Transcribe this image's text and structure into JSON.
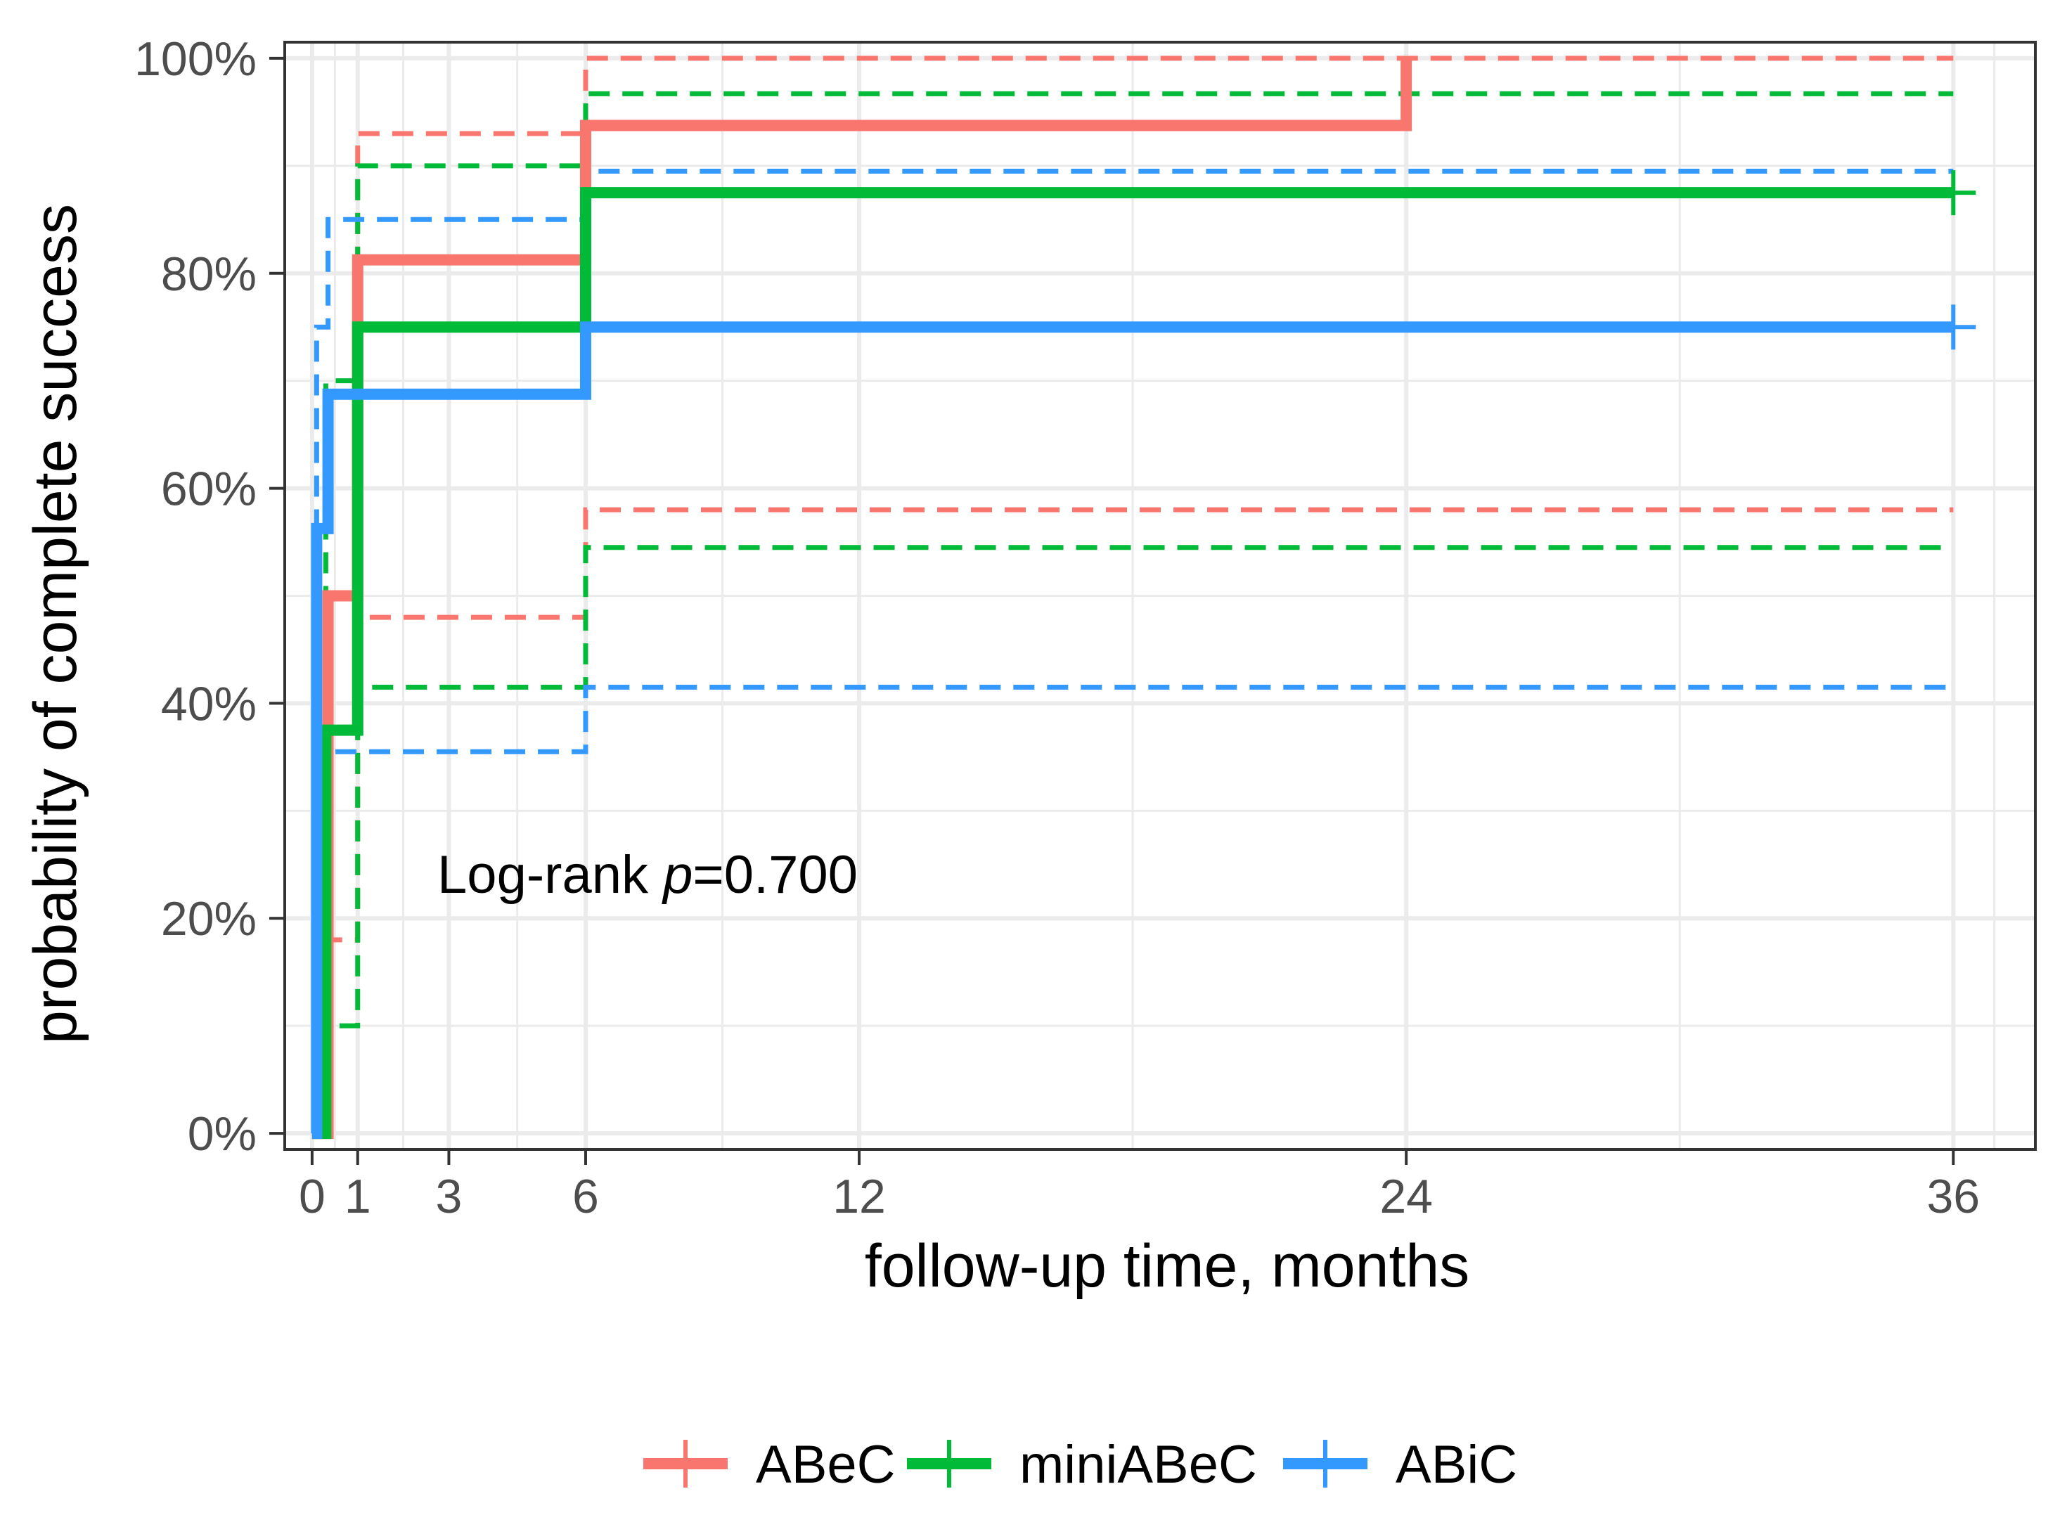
{
  "chart_data": {
    "type": "line",
    "xlabel": "follow-up time, months",
    "ylabel": "probability of complete success",
    "xlim": [
      -0.6,
      37.8
    ],
    "ylim": [
      -0.015,
      1.015
    ],
    "xticks": [
      0,
      1,
      3,
      6,
      12,
      24,
      36
    ],
    "xtick_labels": [
      "0",
      "1",
      "3",
      "6",
      "12",
      "24",
      "36"
    ],
    "yticks": [
      0,
      0.2,
      0.4,
      0.6,
      0.8,
      1.0
    ],
    "ytick_labels": [
      "0%",
      "20%",
      "40%",
      "60%",
      "80%",
      "100%"
    ],
    "grid": true,
    "legend_position": "bottom",
    "annotation": {
      "prefix": "Log-rank ",
      "italic": "p",
      "suffix": "=0.700",
      "x": 12,
      "y": 0.25
    },
    "series": [
      {
        "name": "ABeC",
        "color": "#F8766D",
        "x": [
          0,
          0.35,
          1,
          6,
          24
        ],
        "y": [
          0,
          0.5,
          0.8125,
          0.9375,
          1.0
        ],
        "censor_x": [],
        "censor_y": [],
        "ci_upper": {
          "x": [
            0,
            0.35,
            1,
            6
          ],
          "y": [
            0,
            0.5,
            0.93,
            1.0
          ]
        },
        "ci_lower": {
          "x": [
            0,
            0.35,
            1,
            6
          ],
          "y": [
            0,
            0.18,
            0.48,
            0.58
          ]
        }
      },
      {
        "name": "miniABeC",
        "color": "#00BA38",
        "x": [
          0,
          0.3,
          1,
          6
        ],
        "y": [
          0,
          0.375,
          0.75,
          0.875
        ],
        "end_x": 36,
        "censor_x": [
          36
        ],
        "censor_y": [
          0.875
        ],
        "ci_upper": {
          "x": [
            0,
            0.3,
            1,
            6
          ],
          "y": [
            0,
            0.7,
            0.9,
            0.967
          ]
        },
        "ci_lower": {
          "x": [
            0,
            0.3,
            1,
            6
          ],
          "y": [
            0,
            0.1,
            0.415,
            0.545
          ]
        }
      },
      {
        "name": "ABiC",
        "color": "#3399FF",
        "x": [
          0,
          0.1,
          0.35,
          6
        ],
        "y": [
          0,
          0.5625,
          0.6875,
          0.75
        ],
        "end_x": 36,
        "censor_x": [
          36
        ],
        "censor_y": [
          0.75
        ],
        "ci_upper": {
          "x": [
            0,
            0.1,
            0.35,
            6
          ],
          "y": [
            0,
            0.75,
            0.85,
            0.895
          ]
        },
        "ci_lower": {
          "x": [
            0,
            0.1,
            0.35,
            6
          ],
          "y": [
            0,
            0.32,
            0.355,
            0.415
          ]
        }
      }
    ]
  }
}
